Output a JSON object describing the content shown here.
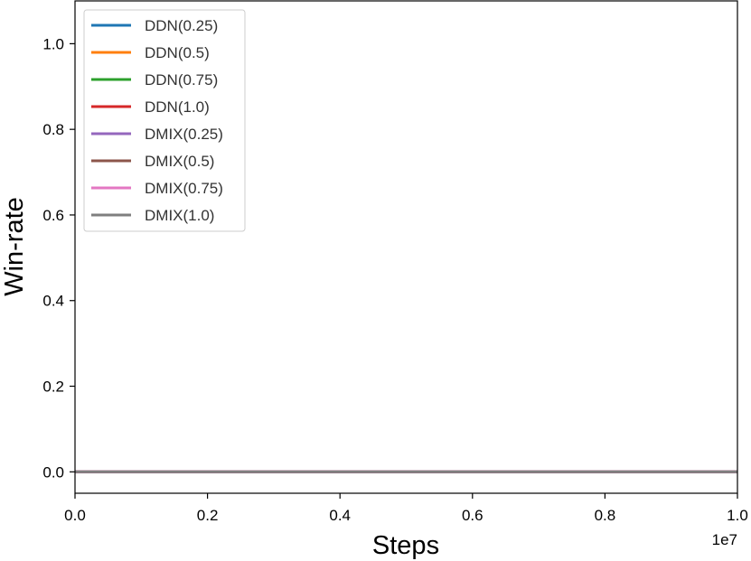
{
  "chart_data": {
    "type": "line",
    "title": "",
    "xlabel": "Steps",
    "ylabel": "Win-rate",
    "x_offset_label": "1e7",
    "xlim": [
      0,
      1.0
    ],
    "ylim": [
      -0.05,
      1.1
    ],
    "x_ticks": [
      0.0,
      0.2,
      0.4,
      0.6,
      0.8,
      1.0
    ],
    "x_tick_labels": [
      "0.0",
      "0.2",
      "0.4",
      "0.6",
      "0.8",
      "1.0"
    ],
    "y_ticks": [
      0.0,
      0.2,
      0.4,
      0.6,
      0.8,
      1.0
    ],
    "y_tick_labels": [
      "0.0",
      "0.2",
      "0.4",
      "0.6",
      "0.8",
      "1.0"
    ],
    "grid": false,
    "legend_position": "top-left",
    "series": [
      {
        "name": "DDN(0.25)",
        "color": "#1f77b4",
        "x": [
          0.0,
          1.0
        ],
        "y": [
          0.0,
          0.0
        ]
      },
      {
        "name": "DDN(0.5)",
        "color": "#ff7f0e",
        "x": [
          0.0,
          1.0
        ],
        "y": [
          0.0,
          0.0
        ]
      },
      {
        "name": "DDN(0.75)",
        "color": "#2ca02c",
        "x": [
          0.0,
          1.0
        ],
        "y": [
          0.0,
          0.0
        ]
      },
      {
        "name": "DDN(1.0)",
        "color": "#d62728",
        "x": [
          0.0,
          1.0
        ],
        "y": [
          0.0,
          0.0
        ]
      },
      {
        "name": "DMIX(0.25)",
        "color": "#9467bd",
        "x": [
          0.0,
          1.0
        ],
        "y": [
          0.0,
          0.0
        ]
      },
      {
        "name": "DMIX(0.5)",
        "color": "#8c564b",
        "x": [
          0.0,
          1.0
        ],
        "y": [
          0.0,
          0.0
        ]
      },
      {
        "name": "DMIX(0.75)",
        "color": "#e377c2",
        "x": [
          0.0,
          1.0
        ],
        "y": [
          0.0,
          0.0
        ]
      },
      {
        "name": "DMIX(1.0)",
        "color": "#7f7f7f",
        "x": [
          0.0,
          1.0
        ],
        "y": [
          0.0,
          0.0
        ]
      }
    ]
  }
}
